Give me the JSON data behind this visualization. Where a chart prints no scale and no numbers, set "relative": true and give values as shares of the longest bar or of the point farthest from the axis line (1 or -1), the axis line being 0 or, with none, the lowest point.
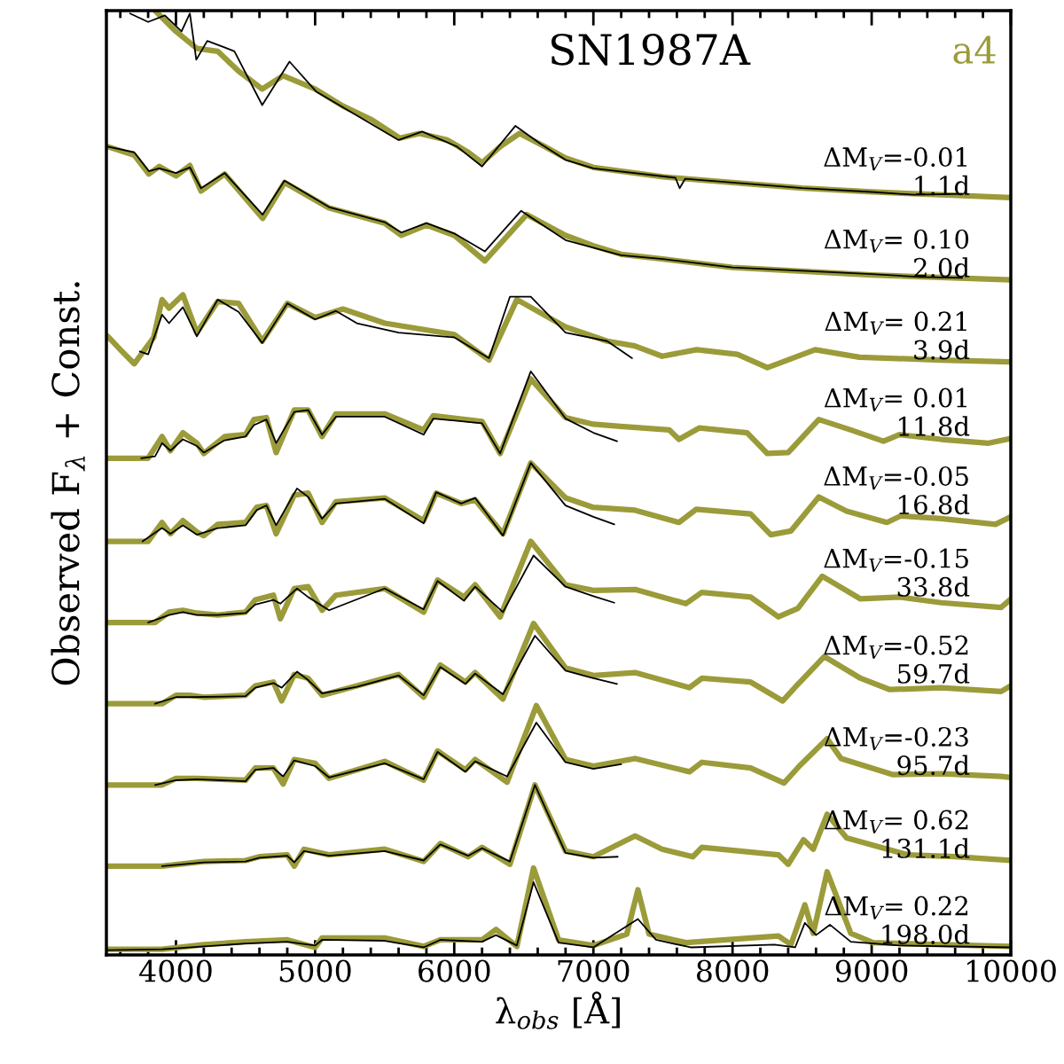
{
  "chart_data": {
    "type": "line",
    "title": "SN1987A",
    "xlabel": "λ$_{obs}$ [Å]",
    "ylabel": "Observed F$_{λ}$ + Const.",
    "relative": true,
    "xlim": [
      3500,
      10000
    ],
    "xticks": [
      4000,
      5000,
      6000,
      7000,
      8000,
      9000,
      10000
    ],
    "tick_labels": "x",
    "grid": false,
    "line_style": "solid",
    "marker": "none",
    "series": [
      {
        "name": "a4",
        "color": "#9b9b3a",
        "x": [
          3850,
          4000,
          4150,
          4300,
          4450,
          4620,
          4770,
          5000,
          5200,
          5400,
          5610,
          5750,
          5950,
          6100,
          6200,
          6330,
          6470,
          6650,
          6800,
          7000,
          7500,
          8000,
          8500,
          9000,
          9500,
          10000
        ],
        "values": [
          1.0,
          0.978,
          0.96,
          0.957,
          0.936,
          0.917,
          0.931,
          0.917,
          0.899,
          0.885,
          0.865,
          0.87,
          0.863,
          0.85,
          0.839,
          0.856,
          0.87,
          0.856,
          0.844,
          0.834,
          0.824,
          0.818,
          0.812,
          0.808,
          0.805,
          0.802
        ]
      },
      {
        "color": "#000000",
        "x": [
          3670,
          3800,
          3920,
          4040,
          4100,
          4146,
          4225,
          4420,
          4620,
          4816,
          5010,
          5300,
          5600,
          5770,
          6020,
          6200,
          6440,
          6620,
          6800,
          7000,
          7590,
          7620,
          7660,
          8000,
          8500,
          9000,
          9300,
          9650
        ],
        "values": [
          0.997,
          0.988,
          0.995,
          0.978,
          0.997,
          0.948,
          0.968,
          0.957,
          0.9,
          0.946,
          0.914,
          0.889,
          0.863,
          0.872,
          0.856,
          0.835,
          0.878,
          0.859,
          0.842,
          0.833,
          0.823,
          0.812,
          0.822,
          0.818,
          0.812,
          0.808,
          0.805,
          0.806
        ]
      },
      {
        "color": "#9b9b3a",
        "x": [
          3510,
          3700,
          3805,
          3880,
          4000,
          4100,
          4180,
          4350,
          4623,
          4780,
          5100,
          5500,
          5620,
          5800,
          6000,
          6220,
          6520,
          6800,
          7000,
          7200,
          7500,
          8000,
          9000,
          10000
        ],
        "values": [
          0.856,
          0.847,
          0.827,
          0.835,
          0.825,
          0.836,
          0.809,
          0.827,
          0.78,
          0.818,
          0.791,
          0.775,
          0.762,
          0.773,
          0.762,
          0.735,
          0.784,
          0.762,
          0.751,
          0.742,
          0.737,
          0.728,
          0.72,
          0.715
        ]
      },
      {
        "color": "#000000",
        "x": [
          3510,
          3700,
          3805,
          3880,
          4000,
          4100,
          4180,
          4350,
          4623,
          4780,
          5100,
          5500,
          5620,
          5800,
          6000,
          6220,
          6480,
          6800,
          7000,
          7200,
          7500,
          8000,
          9000,
          9350,
          9650
        ],
        "values": [
          0.856,
          0.85,
          0.83,
          0.833,
          0.828,
          0.834,
          0.812,
          0.828,
          0.784,
          0.82,
          0.792,
          0.776,
          0.765,
          0.775,
          0.764,
          0.745,
          0.788,
          0.757,
          0.749,
          0.741,
          0.737,
          0.728,
          0.721,
          0.718,
          0.717
        ]
      },
      {
        "color": "#9b9b3a",
        "x": [
          3510,
          3600,
          3700,
          3840,
          3900,
          3950,
          4050,
          4150,
          4300,
          4450,
          4620,
          4800,
          5000,
          5200,
          5500,
          6000,
          6250,
          6450,
          6800,
          7100,
          7297,
          7494,
          7742,
          8035,
          8251,
          8594,
          8912,
          9500,
          9990
        ],
        "values": [
          0.655,
          0.641,
          0.626,
          0.654,
          0.694,
          0.685,
          0.699,
          0.659,
          0.692,
          0.69,
          0.65,
          0.69,
          0.675,
          0.684,
          0.669,
          0.657,
          0.63,
          0.694,
          0.665,
          0.65,
          0.645,
          0.634,
          0.641,
          0.636,
          0.622,
          0.641,
          0.633,
          0.63,
          0.628
        ]
      },
      {
        "color": "#000000",
        "x": [
          3740,
          3800,
          3900,
          3950,
          4050,
          4150,
          4300,
          4450,
          4620,
          4800,
          5000,
          5150,
          5300,
          5600,
          6000,
          6250,
          6400,
          6550,
          6800,
          7100,
          7278
        ],
        "values": [
          0.639,
          0.636,
          0.678,
          0.669,
          0.686,
          0.655,
          0.694,
          0.681,
          0.648,
          0.69,
          0.673,
          0.682,
          0.669,
          0.659,
          0.654,
          0.632,
          0.697,
          0.697,
          0.659,
          0.65,
          0.632
        ]
      },
      {
        "color": "#9b9b3a",
        "x": [
          3510,
          3800,
          3900,
          3960,
          4050,
          4150,
          4200,
          4350,
          4500,
          4560,
          4650,
          4720,
          4850,
          4950,
          5050,
          5150,
          5500,
          5780,
          5850,
          6200,
          6330,
          6550,
          6800,
          7000,
          7175,
          7545,
          7615,
          7760,
          8105,
          8250,
          8400,
          8620,
          8850,
          9085,
          9200,
          9500,
          9840,
          10000
        ],
        "values": [
          0.526,
          0.526,
          0.549,
          0.534,
          0.553,
          0.542,
          0.531,
          0.549,
          0.551,
          0.567,
          0.569,
          0.532,
          0.577,
          0.577,
          0.549,
          0.573,
          0.573,
          0.556,
          0.571,
          0.565,
          0.531,
          0.61,
          0.569,
          0.562,
          0.56,
          0.556,
          0.546,
          0.558,
          0.553,
          0.531,
          0.532,
          0.567,
          0.556,
          0.544,
          0.551,
          0.546,
          0.542,
          0.547
        ]
      },
      {
        "color": "#000000",
        "x": [
          3750,
          3850,
          3900,
          3960,
          4050,
          4150,
          4200,
          4350,
          4500,
          4560,
          4650,
          4720,
          4850,
          4950,
          5050,
          5150,
          5500,
          5780,
          5850,
          6200,
          6330,
          6550,
          6800,
          7000,
          7170
        ],
        "values": [
          0.526,
          0.528,
          0.542,
          0.534,
          0.546,
          0.539,
          0.532,
          0.545,
          0.549,
          0.561,
          0.567,
          0.542,
          0.575,
          0.577,
          0.551,
          0.57,
          0.57,
          0.551,
          0.568,
          0.563,
          0.531,
          0.618,
          0.568,
          0.553,
          0.544
        ]
      },
      {
        "color": "#9b9b3a",
        "x": [
          3510,
          3800,
          3900,
          3960,
          4050,
          4150,
          4200,
          4300,
          4500,
          4580,
          4650,
          4720,
          4850,
          4950,
          5050,
          5150,
          5500,
          5780,
          5870,
          6050,
          6150,
          6350,
          6550,
          6800,
          7000,
          7300,
          7615,
          7740,
          8130,
          8275,
          8420,
          8620,
          8820,
          9110,
          9210,
          9500,
          9890,
          10000
        ],
        "values": [
          0.438,
          0.438,
          0.458,
          0.446,
          0.46,
          0.448,
          0.444,
          0.456,
          0.458,
          0.474,
          0.476,
          0.446,
          0.487,
          0.489,
          0.458,
          0.48,
          0.484,
          0.46,
          0.489,
          0.478,
          0.482,
          0.446,
          0.521,
          0.484,
          0.474,
          0.471,
          0.458,
          0.472,
          0.467,
          0.445,
          0.449,
          0.485,
          0.47,
          0.458,
          0.465,
          0.462,
          0.456,
          0.464
        ]
      },
      {
        "color": "#000000",
        "x": [
          3760,
          3900,
          3960,
          4050,
          4150,
          4300,
          4500,
          4580,
          4650,
          4720,
          4870,
          4950,
          5050,
          5150,
          5500,
          5780,
          5870,
          6050,
          6150,
          6350,
          6550,
          6800,
          7000,
          7150
        ],
        "values": [
          0.438,
          0.452,
          0.446,
          0.455,
          0.445,
          0.452,
          0.455,
          0.471,
          0.476,
          0.455,
          0.494,
          0.485,
          0.462,
          0.478,
          0.483,
          0.457,
          0.49,
          0.478,
          0.484,
          0.444,
          0.521,
          0.476,
          0.464,
          0.456
        ]
      },
      {
        "color": "#9b9b3a",
        "x": [
          3510,
          3850,
          3950,
          4050,
          4150,
          4300,
          4500,
          4570,
          4700,
          4750,
          4850,
          4950,
          5050,
          5150,
          5500,
          5780,
          5880,
          6070,
          6150,
          6330,
          6550,
          6800,
          7000,
          7300,
          7665,
          7780,
          8130,
          8330,
          8470,
          8645,
          8920,
          9200,
          9500,
          9930,
          10000
        ],
        "values": [
          0.352,
          0.352,
          0.363,
          0.365,
          0.362,
          0.36,
          0.363,
          0.376,
          0.381,
          0.356,
          0.388,
          0.39,
          0.365,
          0.381,
          0.388,
          0.363,
          0.397,
          0.379,
          0.392,
          0.358,
          0.438,
          0.392,
          0.386,
          0.387,
          0.372,
          0.384,
          0.379,
          0.358,
          0.367,
          0.401,
          0.377,
          0.379,
          0.373,
          0.368,
          0.377
        ]
      },
      {
        "color": "#000000",
        "x": [
          3800,
          3950,
          4050,
          4150,
          4300,
          4500,
          4570,
          4700,
          4750,
          4870,
          4950,
          5100,
          5500,
          5780,
          5880,
          6070,
          6150,
          6350,
          6570,
          6800,
          7000,
          7150
        ],
        "values": [
          0.352,
          0.36,
          0.363,
          0.36,
          0.36,
          0.362,
          0.371,
          0.376,
          0.372,
          0.388,
          0.379,
          0.365,
          0.388,
          0.366,
          0.396,
          0.375,
          0.39,
          0.363,
          0.423,
          0.39,
          0.38,
          0.373
        ]
      },
      {
        "color": "#9b9b3a",
        "x": [
          3510,
          3900,
          4000,
          4100,
          4200,
          4500,
          4570,
          4700,
          4760,
          4850,
          4950,
          5050,
          5300,
          5600,
          5780,
          5900,
          6080,
          6150,
          6350,
          6570,
          6800,
          7000,
          7300,
          7690,
          7780,
          8130,
          8360,
          8460,
          8660,
          8920,
          9130,
          9500,
          9930,
          10000
        ],
        "values": [
          0.266,
          0.266,
          0.275,
          0.275,
          0.273,
          0.275,
          0.285,
          0.289,
          0.269,
          0.297,
          0.293,
          0.275,
          0.285,
          0.297,
          0.273,
          0.307,
          0.289,
          0.299,
          0.271,
          0.351,
          0.304,
          0.296,
          0.299,
          0.283,
          0.293,
          0.289,
          0.269,
          0.285,
          0.316,
          0.293,
          0.281,
          0.283,
          0.279,
          0.285
        ]
      },
      {
        "color": "#000000",
        "x": [
          3850,
          4000,
          4100,
          4500,
          4570,
          4700,
          4760,
          4870,
          4950,
          5050,
          5300,
          5600,
          5780,
          5900,
          6080,
          6150,
          6350,
          6580,
          6800,
          7000,
          7170
        ],
        "values": [
          0.266,
          0.273,
          0.273,
          0.274,
          0.283,
          0.288,
          0.283,
          0.3,
          0.291,
          0.277,
          0.284,
          0.296,
          0.275,
          0.305,
          0.287,
          0.298,
          0.276,
          0.338,
          0.301,
          0.293,
          0.287
        ]
      },
      {
        "color": "#9b9b3a",
        "x": [
          3510,
          3900,
          4000,
          4150,
          4500,
          4570,
          4700,
          4770,
          4850,
          5000,
          5100,
          5500,
          5780,
          5880,
          6080,
          6150,
          6380,
          6590,
          6800,
          7000,
          7300,
          7690,
          7780,
          8130,
          8370,
          8480,
          8680,
          8780,
          9150,
          9500,
          9930,
          10000
        ],
        "values": [
          0.18,
          0.18,
          0.187,
          0.187,
          0.185,
          0.198,
          0.198,
          0.181,
          0.207,
          0.203,
          0.187,
          0.205,
          0.185,
          0.216,
          0.196,
          0.207,
          0.183,
          0.264,
          0.207,
          0.2,
          0.208,
          0.194,
          0.204,
          0.198,
          0.182,
          0.2,
          0.229,
          0.208,
          0.191,
          0.192,
          0.189,
          0.188
        ]
      },
      {
        "color": "#000000",
        "x": [
          3850,
          4000,
          4150,
          4500,
          4570,
          4700,
          4770,
          4850,
          5000,
          5100,
          5500,
          5780,
          5880,
          6080,
          6150,
          6380,
          6590,
          6800,
          7000,
          7200
        ],
        "values": [
          0.18,
          0.185,
          0.186,
          0.184,
          0.196,
          0.198,
          0.189,
          0.206,
          0.2,
          0.188,
          0.203,
          0.186,
          0.215,
          0.194,
          0.205,
          0.189,
          0.246,
          0.204,
          0.197,
          0.202
        ]
      },
      {
        "color": "#9b9b3a",
        "x": [
          3510,
          3900,
          4200,
          4500,
          4600,
          4800,
          4850,
          4920,
          5100,
          5500,
          5780,
          5900,
          6100,
          6200,
          6400,
          6580,
          6800,
          7000,
          7300,
          7494,
          7715,
          7780,
          8330,
          8400,
          8510,
          8580,
          8680,
          8820,
          9260,
          9600,
          10000
        ],
        "values": [
          0.094,
          0.094,
          0.099,
          0.1,
          0.104,
          0.106,
          0.094,
          0.112,
          0.106,
          0.112,
          0.099,
          0.118,
          0.104,
          0.114,
          0.096,
          0.18,
          0.11,
          0.104,
          0.126,
          0.112,
          0.104,
          0.114,
          0.106,
          0.096,
          0.122,
          0.112,
          0.149,
          0.124,
          0.106,
          0.104,
          0.1
        ]
      },
      {
        "color": "#000000",
        "x": [
          3900,
          4200,
          4500,
          4600,
          4800,
          4850,
          4920,
          5100,
          5500,
          5780,
          5900,
          6100,
          6200,
          6400,
          6580,
          6800,
          7000,
          7175
        ],
        "values": [
          0.094,
          0.098,
          0.099,
          0.103,
          0.105,
          0.098,
          0.11,
          0.105,
          0.11,
          0.1,
          0.117,
          0.105,
          0.113,
          0.099,
          0.18,
          0.108,
          0.103,
          0.104
        ]
      },
      {
        "color": "#9b9b3a",
        "x": [
          3510,
          3900,
          4200,
          4500,
          4800,
          5000,
          5050,
          5500,
          5780,
          5900,
          6200,
          6300,
          6450,
          6570,
          6750,
          7000,
          7240,
          7320,
          7400,
          7665,
          8330,
          8420,
          8520,
          8580,
          8680,
          8850,
          9010,
          10000
        ],
        "values": [
          0.006,
          0.006,
          0.011,
          0.014,
          0.016,
          0.008,
          0.018,
          0.018,
          0.009,
          0.016,
          0.016,
          0.027,
          0.009,
          0.092,
          0.016,
          0.01,
          0.022,
          0.069,
          0.022,
          0.013,
          0.02,
          0.011,
          0.053,
          0.023,
          0.088,
          0.023,
          0.013,
          0.009
        ]
      },
      {
        "color": "#000000",
        "x": [
          3500,
          3900,
          4200,
          4500,
          4800,
          5000,
          5050,
          5500,
          5780,
          5900,
          6200,
          6300,
          6450,
          6570,
          6750,
          7000,
          7320,
          7450,
          7700,
          8300,
          8450,
          8520,
          8600,
          8700,
          8850,
          9200,
          10000
        ],
        "values": [
          0.005,
          0.006,
          0.009,
          0.012,
          0.014,
          0.01,
          0.016,
          0.015,
          0.008,
          0.016,
          0.014,
          0.021,
          0.01,
          0.077,
          0.013,
          0.008,
          0.038,
          0.016,
          0.008,
          0.011,
          0.008,
          0.034,
          0.021,
          0.032,
          0.014,
          0.01,
          0.008
        ]
      }
    ],
    "annotations": [
      "ΔM$_{V}$=-0.01",
      "1.1d",
      "ΔM$_{V}$= 0.10",
      "2.0d",
      "ΔM$_{V}$= 0.21",
      "3.9d",
      "ΔM$_{V}$= 0.01",
      "11.8d",
      "ΔM$_{V}$=-0.05",
      "16.8d",
      "ΔM$_{V}$=-0.15",
      "33.8d",
      "ΔM$_{V}$=-0.52",
      "59.7d",
      "ΔM$_{V}$=-0.23",
      "95.7d",
      "ΔM$_{V}$= 0.62",
      "131.1d",
      "ΔM$_{V}$= 0.22",
      "198.0d"
    ]
  }
}
